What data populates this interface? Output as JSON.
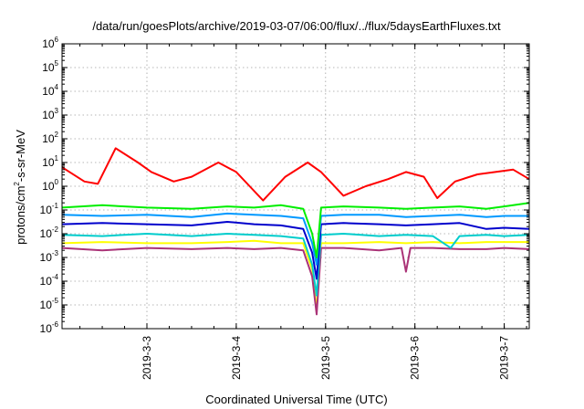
{
  "chart_data": {
    "type": "line",
    "title": "/data/run/goesPlots/archive/2019-03-07/06:00/flux/../flux/5daysEarthFluxes.txt",
    "xlabel": "Coordinated Universal Time (UTC)",
    "ylabel": "protons/cm2-s-sr-MeV",
    "ylabel_parts": {
      "pre": "protons/cm",
      "sup": "2",
      "post": "-s-sr-MeV"
    },
    "yscale": "log",
    "ylim_exp": [
      -6,
      6
    ],
    "y_ticks": [
      {
        "exp": "-6"
      },
      {
        "exp": "-5"
      },
      {
        "exp": "-4"
      },
      {
        "exp": "-3"
      },
      {
        "exp": "-2"
      },
      {
        "exp": "-1"
      },
      {
        "exp": "0"
      },
      {
        "exp": "1"
      },
      {
        "exp": "2"
      },
      {
        "exp": "3"
      },
      {
        "exp": "4"
      },
      {
        "exp": "5"
      },
      {
        "exp": "6"
      }
    ],
    "y_tick_base": "10",
    "xlim_days": [
      2.05,
      7.28
    ],
    "x_ticks": [
      {
        "label": "2019-3-3",
        "day": 3
      },
      {
        "label": "2019-3-4",
        "day": 4
      },
      {
        "label": "2019-3-5",
        "day": 5
      },
      {
        "label": "2019-3-6",
        "day": 6
      },
      {
        "label": "2019-3-7",
        "day": 7
      }
    ],
    "grid": true,
    "legend": "none",
    "series": [
      {
        "color": "#ffff00",
        "x": [
          2.05,
          2.5,
          3.0,
          3.5,
          3.9,
          4.2,
          4.5,
          4.75,
          4.85,
          4.9,
          4.95,
          5.2,
          5.6,
          5.9,
          6.2,
          6.5,
          6.8,
          7.0,
          7.28
        ],
        "log_y": [
          -2.4,
          -2.35,
          -2.4,
          -2.4,
          -2.35,
          -2.3,
          -2.4,
          -2.4,
          -3.5,
          -5.2,
          -2.4,
          -2.4,
          -2.35,
          -2.4,
          -2.35,
          -2.4,
          -2.35,
          -2.35,
          -2.35
        ]
      },
      {
        "color": "#aa3377",
        "x": [
          2.05,
          2.5,
          3.0,
          3.5,
          3.9,
          4.2,
          4.5,
          4.75,
          4.85,
          4.9,
          4.95,
          5.2,
          5.6,
          5.85,
          5.9,
          5.95,
          6.2,
          6.5,
          6.8,
          7.0,
          7.28
        ],
        "log_y": [
          -2.6,
          -2.7,
          -2.6,
          -2.65,
          -2.6,
          -2.65,
          -2.6,
          -2.7,
          -3.8,
          -5.4,
          -2.6,
          -2.6,
          -2.7,
          -2.6,
          -3.6,
          -2.6,
          -2.6,
          -2.65,
          -2.65,
          -2.6,
          -2.65
        ]
      },
      {
        "color": "#00cccc",
        "x": [
          2.05,
          2.5,
          3.0,
          3.5,
          3.9,
          4.2,
          4.5,
          4.75,
          4.85,
          4.9,
          4.95,
          5.2,
          5.6,
          5.9,
          6.2,
          6.4,
          6.5,
          6.8,
          7.0,
          7.28
        ],
        "log_y": [
          -2.05,
          -2.1,
          -2.0,
          -2.1,
          -2.0,
          -2.05,
          -2.1,
          -2.2,
          -3.3,
          -4.6,
          -2.05,
          -2.0,
          -2.1,
          -2.05,
          -2.1,
          -2.6,
          -2.1,
          -2.05,
          -2.1,
          -2.05
        ]
      },
      {
        "color": "#0000cc",
        "x": [
          2.05,
          2.5,
          3.0,
          3.5,
          3.9,
          4.2,
          4.5,
          4.75,
          4.85,
          4.9,
          4.95,
          5.2,
          5.6,
          5.9,
          6.2,
          6.5,
          6.8,
          7.0,
          7.28
        ],
        "log_y": [
          -1.6,
          -1.55,
          -1.6,
          -1.65,
          -1.5,
          -1.6,
          -1.65,
          -1.8,
          -2.8,
          -3.9,
          -1.6,
          -1.55,
          -1.6,
          -1.65,
          -1.6,
          -1.55,
          -1.8,
          -1.75,
          -1.8
        ]
      },
      {
        "color": "#0099ff",
        "x": [
          2.05,
          2.5,
          3.0,
          3.5,
          3.9,
          4.2,
          4.5,
          4.75,
          4.85,
          4.9,
          4.95,
          5.2,
          5.6,
          5.9,
          6.2,
          6.5,
          6.8,
          7.0,
          7.28
        ],
        "log_y": [
          -1.2,
          -1.25,
          -1.2,
          -1.3,
          -1.15,
          -1.2,
          -1.25,
          -1.35,
          -2.4,
          -3.3,
          -1.25,
          -1.2,
          -1.2,
          -1.3,
          -1.25,
          -1.2,
          -1.3,
          -1.25,
          -1.25
        ]
      },
      {
        "color": "#00ee00",
        "x": [
          2.05,
          2.5,
          3.0,
          3.5,
          3.9,
          4.2,
          4.5,
          4.75,
          4.85,
          4.9,
          4.95,
          5.2,
          5.6,
          5.9,
          6.2,
          6.5,
          6.8,
          7.0,
          7.28
        ],
        "log_y": [
          -0.9,
          -0.8,
          -0.9,
          -0.95,
          -0.85,
          -0.9,
          -0.8,
          -0.95,
          -2.0,
          -3.0,
          -0.9,
          -0.85,
          -0.9,
          -0.95,
          -0.9,
          -0.85,
          -0.95,
          -0.85,
          -0.7
        ]
      },
      {
        "color": "#ff0000",
        "x": [
          2.05,
          2.3,
          2.45,
          2.65,
          2.9,
          3.05,
          3.3,
          3.5,
          3.8,
          4.0,
          4.15,
          4.3,
          4.55,
          4.8,
          4.95,
          5.2,
          5.45,
          5.7,
          5.9,
          6.1,
          6.25,
          6.45,
          6.7,
          6.9,
          7.1,
          7.28
        ],
        "log_y": [
          0.8,
          0.2,
          0.1,
          1.6,
          1.0,
          0.6,
          0.2,
          0.4,
          1.0,
          0.6,
          0.0,
          -0.6,
          0.4,
          1.0,
          0.6,
          -0.4,
          0.0,
          0.3,
          0.6,
          0.4,
          -0.5,
          0.2,
          0.5,
          0.6,
          0.7,
          0.3
        ]
      }
    ]
  }
}
